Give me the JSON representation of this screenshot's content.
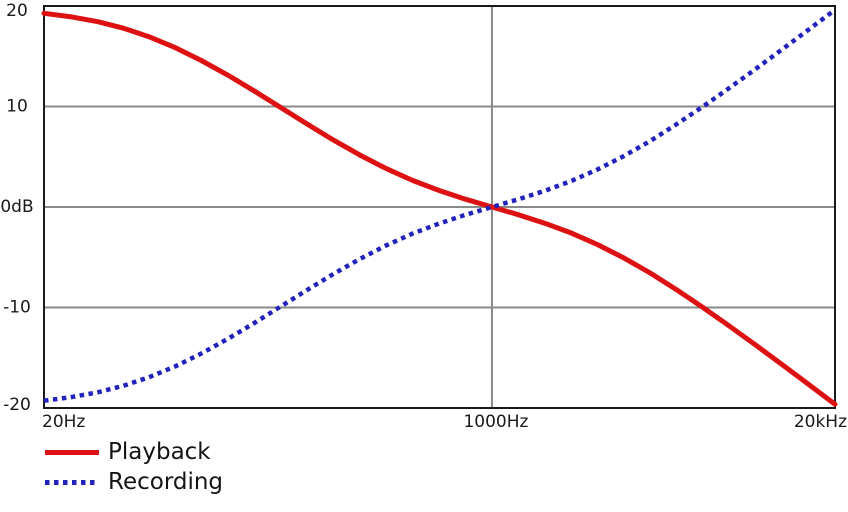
{
  "chart_data": {
    "type": "line",
    "title": "",
    "x_axis": {
      "scale": "log",
      "min": 20,
      "max": 20000,
      "unit": "Hz",
      "ticks": [
        {
          "value": 20,
          "label": "20Hz"
        },
        {
          "value": 1000,
          "label": "1000Hz"
        },
        {
          "value": 20000,
          "label": "20kHz"
        }
      ],
      "gridlines": [
        1000
      ]
    },
    "y_axis": {
      "min": -20,
      "max": 20,
      "unit": "dB",
      "ticks": [
        {
          "value": 20,
          "label": "20"
        },
        {
          "value": 10,
          "label": "10"
        },
        {
          "value": 0,
          "label": "0dB"
        },
        {
          "value": -10,
          "label": "-10"
        },
        {
          "value": -20,
          "label": "-20"
        }
      ],
      "gridlines": [
        10,
        0,
        -10
      ]
    },
    "frequencies_hz": [
      20,
      25,
      32,
      40,
      50,
      63,
      79,
      100,
      126,
      158,
      200,
      251,
      316,
      398,
      501,
      631,
      794,
      1000,
      1259,
      1585,
      1995,
      2512,
      3162,
      3981,
      5012,
      6310,
      7943,
      10000,
      12589,
      15849,
      20000
    ],
    "series": [
      {
        "name": "Playback",
        "color": "#dd1111",
        "line_style": "solid",
        "values_db": [
          19.27,
          18.95,
          18.44,
          17.79,
          16.95,
          15.85,
          14.58,
          13.09,
          11.51,
          9.9,
          8.22,
          6.65,
          5.16,
          3.81,
          2.64,
          1.64,
          0.78,
          0,
          -0.77,
          -1.61,
          -2.58,
          -3.73,
          -5.06,
          -6.57,
          -8.23,
          -9.99,
          -11.84,
          -13.73,
          -15.67,
          -17.63,
          -19.62
        ]
      },
      {
        "name": "Recording",
        "color": "#2222bd",
        "line_style": "dotted",
        "values_db": [
          -19.27,
          -18.95,
          -18.44,
          -17.79,
          -16.95,
          -15.85,
          -14.58,
          -13.09,
          -11.51,
          -9.9,
          -8.22,
          -6.65,
          -5.16,
          -3.81,
          -2.64,
          -1.64,
          -0.78,
          0,
          0.77,
          1.61,
          2.58,
          3.73,
          5.06,
          6.57,
          8.23,
          9.99,
          11.84,
          13.73,
          15.67,
          17.63,
          19.62
        ]
      }
    ],
    "legend_position": "bottom-left",
    "grid": true,
    "plot_colors": {
      "background": "#ffffff",
      "border": "#1a1a1a",
      "grid": "#8a8a8a",
      "text": "#1a1a1a"
    }
  }
}
